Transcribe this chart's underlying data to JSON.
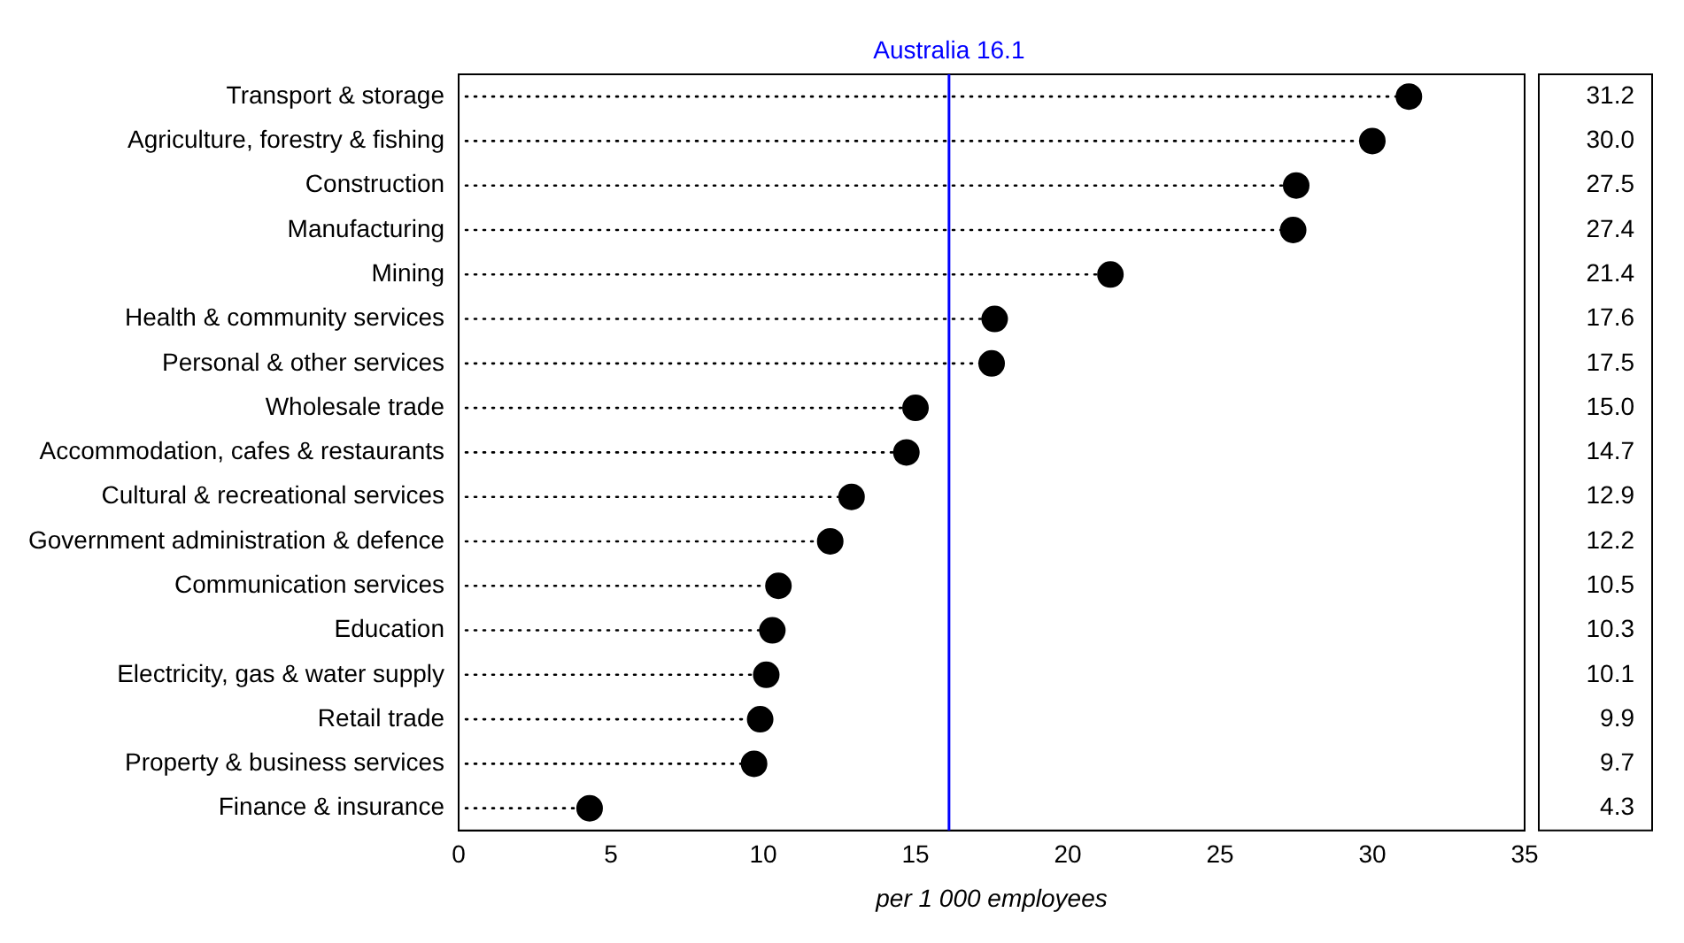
{
  "chart_data": {
    "type": "lollipop",
    "orientation": "horizontal",
    "xlabel": "per 1 000 employees",
    "categories": [
      "Transport & storage",
      "Agriculture, forestry & fishing",
      "Construction",
      "Manufacturing",
      "Mining",
      "Health & community services",
      "Personal & other services",
      "Wholesale trade",
      "Accommodation, cafes & restaurants",
      "Cultural & recreational services",
      "Government administration & defence",
      "Communication services",
      "Education",
      "Electricity, gas & water supply",
      "Retail trade",
      "Property & business services",
      "Finance & insurance"
    ],
    "values": [
      31.2,
      30.0,
      27.5,
      27.4,
      21.4,
      17.6,
      17.5,
      15.0,
      14.7,
      12.9,
      12.2,
      10.5,
      10.3,
      10.1,
      9.9,
      9.7,
      4.3
    ],
    "value_labels": [
      "31.2",
      "30.0",
      "27.5",
      "27.4",
      "21.4",
      "17.6",
      "17.5",
      "15.0",
      "14.7",
      "12.9",
      "12.2",
      "10.5",
      "10.3",
      "10.1",
      "9.9",
      "9.7",
      "4.3"
    ],
    "color": "#000000",
    "marker": "circle",
    "line_style": "dotted",
    "xlim": [
      0,
      35
    ],
    "xticks": [
      0,
      5,
      10,
      15,
      20,
      25,
      30,
      35
    ],
    "ref_lines": [
      {
        "axis": "x",
        "value": 16.1,
        "label": "Australia 16.1",
        "color": "#0000ff"
      }
    ]
  }
}
